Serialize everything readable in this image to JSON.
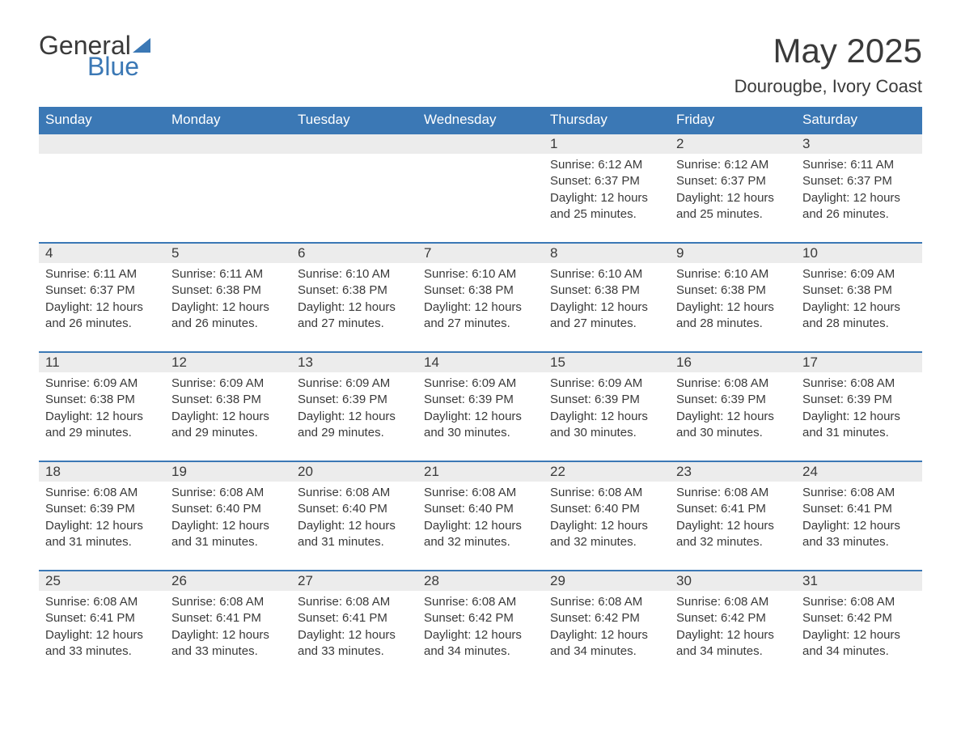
{
  "brand": {
    "word1": "General",
    "word2": "Blue",
    "logo_color": "#3b78b5"
  },
  "title": "May 2025",
  "subtitle": "Dourougbe, Ivory Coast",
  "colors": {
    "header_bg": "#3b78b5",
    "header_text": "#ffffff",
    "daynum_bg": "#ececec",
    "border": "#3b78b5",
    "text": "#3a3a3a",
    "page_bg": "#ffffff"
  },
  "fonts": {
    "title_size_pt": 32,
    "subtitle_size_pt": 17,
    "header_size_pt": 13,
    "cell_size_pt": 11
  },
  "day_headers": [
    "Sunday",
    "Monday",
    "Tuesday",
    "Wednesday",
    "Thursday",
    "Friday",
    "Saturday"
  ],
  "weeks": [
    [
      null,
      null,
      null,
      null,
      {
        "n": "1",
        "sr": "Sunrise: 6:12 AM",
        "ss": "Sunset: 6:37 PM",
        "dl": "Daylight: 12 hours and 25 minutes."
      },
      {
        "n": "2",
        "sr": "Sunrise: 6:12 AM",
        "ss": "Sunset: 6:37 PM",
        "dl": "Daylight: 12 hours and 25 minutes."
      },
      {
        "n": "3",
        "sr": "Sunrise: 6:11 AM",
        "ss": "Sunset: 6:37 PM",
        "dl": "Daylight: 12 hours and 26 minutes."
      }
    ],
    [
      {
        "n": "4",
        "sr": "Sunrise: 6:11 AM",
        "ss": "Sunset: 6:37 PM",
        "dl": "Daylight: 12 hours and 26 minutes."
      },
      {
        "n": "5",
        "sr": "Sunrise: 6:11 AM",
        "ss": "Sunset: 6:38 PM",
        "dl": "Daylight: 12 hours and 26 minutes."
      },
      {
        "n": "6",
        "sr": "Sunrise: 6:10 AM",
        "ss": "Sunset: 6:38 PM",
        "dl": "Daylight: 12 hours and 27 minutes."
      },
      {
        "n": "7",
        "sr": "Sunrise: 6:10 AM",
        "ss": "Sunset: 6:38 PM",
        "dl": "Daylight: 12 hours and 27 minutes."
      },
      {
        "n": "8",
        "sr": "Sunrise: 6:10 AM",
        "ss": "Sunset: 6:38 PM",
        "dl": "Daylight: 12 hours and 27 minutes."
      },
      {
        "n": "9",
        "sr": "Sunrise: 6:10 AM",
        "ss": "Sunset: 6:38 PM",
        "dl": "Daylight: 12 hours and 28 minutes."
      },
      {
        "n": "10",
        "sr": "Sunrise: 6:09 AM",
        "ss": "Sunset: 6:38 PM",
        "dl": "Daylight: 12 hours and 28 minutes."
      }
    ],
    [
      {
        "n": "11",
        "sr": "Sunrise: 6:09 AM",
        "ss": "Sunset: 6:38 PM",
        "dl": "Daylight: 12 hours and 29 minutes."
      },
      {
        "n": "12",
        "sr": "Sunrise: 6:09 AM",
        "ss": "Sunset: 6:38 PM",
        "dl": "Daylight: 12 hours and 29 minutes."
      },
      {
        "n": "13",
        "sr": "Sunrise: 6:09 AM",
        "ss": "Sunset: 6:39 PM",
        "dl": "Daylight: 12 hours and 29 minutes."
      },
      {
        "n": "14",
        "sr": "Sunrise: 6:09 AM",
        "ss": "Sunset: 6:39 PM",
        "dl": "Daylight: 12 hours and 30 minutes."
      },
      {
        "n": "15",
        "sr": "Sunrise: 6:09 AM",
        "ss": "Sunset: 6:39 PM",
        "dl": "Daylight: 12 hours and 30 minutes."
      },
      {
        "n": "16",
        "sr": "Sunrise: 6:08 AM",
        "ss": "Sunset: 6:39 PM",
        "dl": "Daylight: 12 hours and 30 minutes."
      },
      {
        "n": "17",
        "sr": "Sunrise: 6:08 AM",
        "ss": "Sunset: 6:39 PM",
        "dl": "Daylight: 12 hours and 31 minutes."
      }
    ],
    [
      {
        "n": "18",
        "sr": "Sunrise: 6:08 AM",
        "ss": "Sunset: 6:39 PM",
        "dl": "Daylight: 12 hours and 31 minutes."
      },
      {
        "n": "19",
        "sr": "Sunrise: 6:08 AM",
        "ss": "Sunset: 6:40 PM",
        "dl": "Daylight: 12 hours and 31 minutes."
      },
      {
        "n": "20",
        "sr": "Sunrise: 6:08 AM",
        "ss": "Sunset: 6:40 PM",
        "dl": "Daylight: 12 hours and 31 minutes."
      },
      {
        "n": "21",
        "sr": "Sunrise: 6:08 AM",
        "ss": "Sunset: 6:40 PM",
        "dl": "Daylight: 12 hours and 32 minutes."
      },
      {
        "n": "22",
        "sr": "Sunrise: 6:08 AM",
        "ss": "Sunset: 6:40 PM",
        "dl": "Daylight: 12 hours and 32 minutes."
      },
      {
        "n": "23",
        "sr": "Sunrise: 6:08 AM",
        "ss": "Sunset: 6:41 PM",
        "dl": "Daylight: 12 hours and 32 minutes."
      },
      {
        "n": "24",
        "sr": "Sunrise: 6:08 AM",
        "ss": "Sunset: 6:41 PM",
        "dl": "Daylight: 12 hours and 33 minutes."
      }
    ],
    [
      {
        "n": "25",
        "sr": "Sunrise: 6:08 AM",
        "ss": "Sunset: 6:41 PM",
        "dl": "Daylight: 12 hours and 33 minutes."
      },
      {
        "n": "26",
        "sr": "Sunrise: 6:08 AM",
        "ss": "Sunset: 6:41 PM",
        "dl": "Daylight: 12 hours and 33 minutes."
      },
      {
        "n": "27",
        "sr": "Sunrise: 6:08 AM",
        "ss": "Sunset: 6:41 PM",
        "dl": "Daylight: 12 hours and 33 minutes."
      },
      {
        "n": "28",
        "sr": "Sunrise: 6:08 AM",
        "ss": "Sunset: 6:42 PM",
        "dl": "Daylight: 12 hours and 34 minutes."
      },
      {
        "n": "29",
        "sr": "Sunrise: 6:08 AM",
        "ss": "Sunset: 6:42 PM",
        "dl": "Daylight: 12 hours and 34 minutes."
      },
      {
        "n": "30",
        "sr": "Sunrise: 6:08 AM",
        "ss": "Sunset: 6:42 PM",
        "dl": "Daylight: 12 hours and 34 minutes."
      },
      {
        "n": "31",
        "sr": "Sunrise: 6:08 AM",
        "ss": "Sunset: 6:42 PM",
        "dl": "Daylight: 12 hours and 34 minutes."
      }
    ]
  ]
}
